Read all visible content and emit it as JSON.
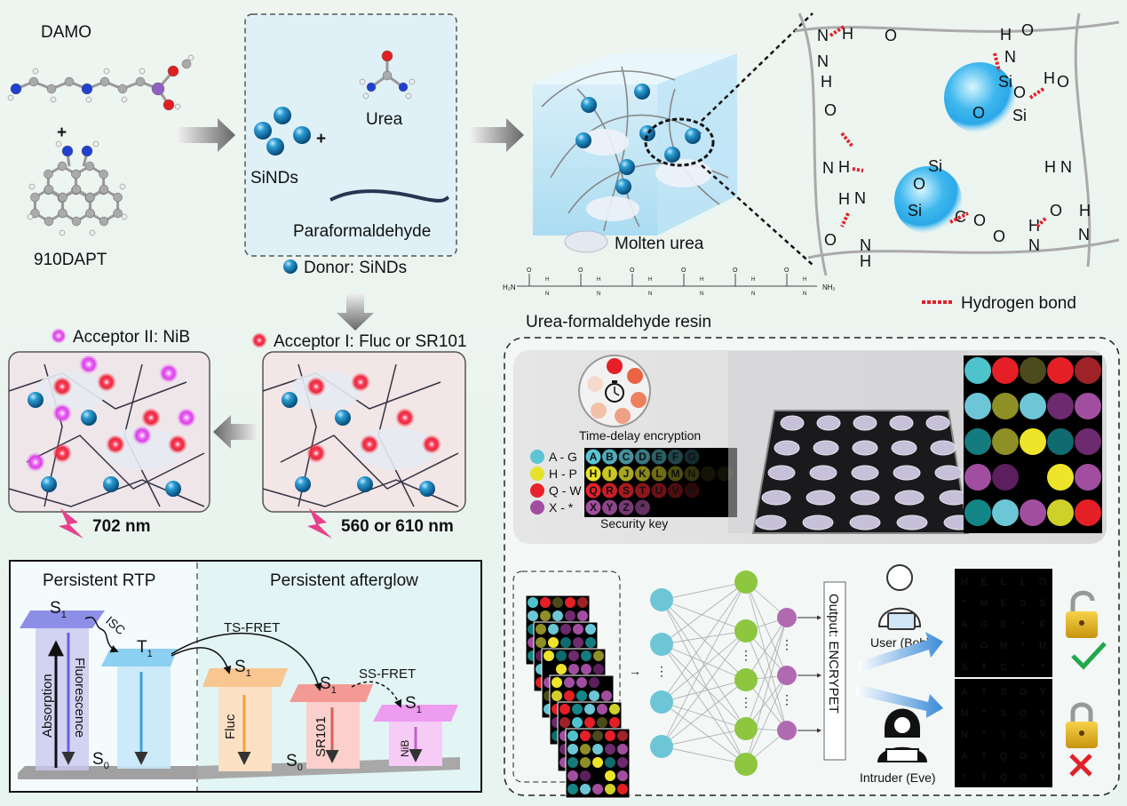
{
  "synthesis": {
    "damo_label": "DAMO",
    "plus": "+",
    "dapt_label": "910DAPT",
    "sinds_label": "SiNDs",
    "urea_label": "Urea",
    "paraformaldehyde_label": "Paraformaldehyde",
    "donor_label": "Donor: SiNDs",
    "molten_urea_label": "Molten urea",
    "resin_label": "Urea-formaldehyde resin",
    "hydrogen_bond_label": "Hydrogen bond",
    "resin_end_left": "H₂N",
    "resin_end_right": "NH₂"
  },
  "acceptors": {
    "acceptor2_label": "Acceptor II: NiB",
    "acceptor1_label": "Acceptor I:  Fluc or SR101",
    "wavelength_left": "702 nm",
    "wavelength_right": "560 or 610 nm"
  },
  "energy_diagram": {
    "left_title": "Persistent RTP",
    "right_title": "Persistent afterglow",
    "absorption": "Absorption",
    "fluorescence": "Fluorescence",
    "isc": "ISC",
    "ts_fret": "TS-FRET",
    "ss_fret": "SS-FRET",
    "fluc": "Fluc",
    "sr101": "SR101",
    "nib": "NiB",
    "s1": "S",
    "t1": "T",
    "s0": "S",
    "sub1": "1",
    "sub0": "0"
  },
  "encryption": {
    "time_delay_label": "Time-delay encryption",
    "security_key_label": "Security key",
    "key_groups": [
      {
        "range": "A - G",
        "color": "#5cc4d4",
        "letters": [
          "A",
          "B",
          "C",
          "D",
          "E",
          "F",
          "G"
        ]
      },
      {
        "range": "H - P",
        "color": "#e6e22a",
        "letters": [
          "H",
          "I",
          "J",
          "K",
          "L",
          "M",
          "N",
          "O",
          "P"
        ]
      },
      {
        "range": "Q - W",
        "color": "#e8222a",
        "letters": [
          "Q",
          "R",
          "S",
          "T",
          "U",
          "V",
          "W"
        ]
      },
      {
        "range": "X - *",
        "color": "#a24ea0",
        "letters": [
          "X",
          "Y",
          "Z",
          "*"
        ]
      }
    ],
    "color_grid": [
      [
        "#4fc3cc",
        "#e41f26",
        "#4b4a1c",
        "#e41f26",
        "#9e2228"
      ],
      [
        "#6cc6d6",
        "#8e8f24",
        "#6cc6d6",
        "#6d2a6e",
        "#a24ea0"
      ],
      [
        "#147b7e",
        "#8e8f24",
        "#eee52a",
        "#0f6b6e",
        "#6d2a6e"
      ],
      [
        "#a24ea0",
        "#5a1f5c",
        "#000000",
        "#eee52a",
        "#a24ea0"
      ],
      [
        "#148587",
        "#6cc6d6",
        "#a24ea0",
        "#cfd12a",
        "#e41f26"
      ]
    ],
    "output_label": "Output: ENCRYPET",
    "user_label": "User (Bob)",
    "intruder_label": "Intruder (Eve)",
    "bob_grid": [
      [
        "H",
        "E",
        "L",
        "L",
        "O"
      ],
      [
        "*",
        "M",
        "E",
        "S",
        "S"
      ],
      [
        "A",
        "G",
        "E",
        "*",
        "F"
      ],
      [
        "R",
        "O",
        "M",
        "*",
        "U"
      ],
      [
        "S",
        "T",
        "C",
        "*",
        "*"
      ]
    ],
    "eve_grid": [
      [
        "A",
        "T",
        "S",
        "O",
        "Y"
      ],
      [
        "M",
        "*",
        "S",
        "O",
        "Y"
      ],
      [
        "N",
        "*",
        "Y",
        "O",
        "Y"
      ],
      [
        "A",
        "T",
        "Q",
        "O",
        "Y"
      ],
      [
        "*",
        "T",
        "Q",
        "O",
        "Y"
      ]
    ],
    "ellipsis": "⋮"
  },
  "colors": {
    "donor": "#1a84b8",
    "acceptor1": "#e8283a",
    "acceptor2": "#d840e0",
    "success": "#22a84a",
    "fail": "#e0222a",
    "nn_input": "#6cc6d6",
    "nn_hidden": "#8dc63f",
    "nn_output": "#b06ab0"
  }
}
